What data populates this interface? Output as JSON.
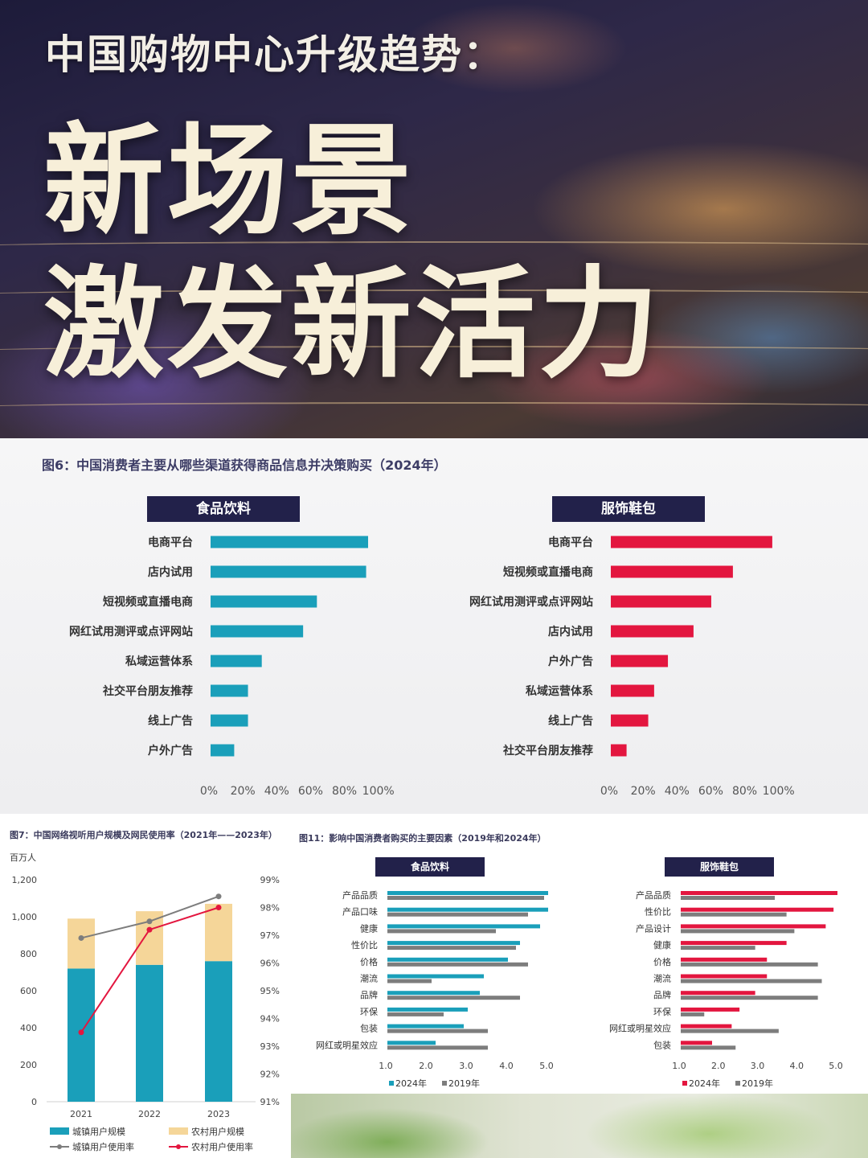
{
  "hero": {
    "subtitle": "中国购物中心升级趋势：",
    "title_line1": "新场景",
    "title_line2": "激发新活力"
  },
  "colors": {
    "teal": "#1a9fba",
    "red": "#e3163f",
    "navy": "#22214a",
    "gray": "#7d7d7d",
    "beige": "#f5d699"
  },
  "chart_data": [
    {
      "id": "fig6",
      "type": "bar",
      "orientation": "horizontal",
      "title": "图6：中国消费者主要从哪些渠道获得商品信息并决策购买（2024年）",
      "panels": [
        {
          "name": "食品饮料",
          "categories": [
            "电商平台",
            "店内试用",
            "短视频或直播电商",
            "网红试用测评或点评网站",
            "私域运营体系",
            "社交平台朋友推荐",
            "线上广告",
            "户外广告"
          ],
          "values": [
            80,
            79,
            54,
            47,
            26,
            19,
            19,
            12
          ]
        },
        {
          "name": "服饰鞋包",
          "categories": [
            "电商平台",
            "短视频或直播电商",
            "网红试用测评或点评网站",
            "店内试用",
            "户外广告",
            "私域运营体系",
            "线上广告",
            "社交平台朋友推荐"
          ],
          "values": [
            82,
            62,
            51,
            42,
            29,
            22,
            19,
            8
          ]
        }
      ],
      "xticks": [
        "0%",
        "20%",
        "40%",
        "60%",
        "80%",
        "100%"
      ],
      "xlim": [
        0,
        100
      ]
    },
    {
      "id": "fig7",
      "type": "bar",
      "title": "图7：中国网络视听用户规模及网民使用率（2021年——2023年）",
      "ylabel": "百万人",
      "categories": [
        "2021",
        "2022",
        "2023"
      ],
      "stacked_series": [
        {
          "name": "城镇用户规模",
          "values": [
            720,
            740,
            760
          ]
        },
        {
          "name": "农村用户规模",
          "values": [
            270,
            290,
            310
          ]
        }
      ],
      "line_series": [
        {
          "name": "城镇用户使用率",
          "values": [
            96.9,
            97.5,
            98.4
          ]
        },
        {
          "name": "农村用户使用率",
          "values": [
            93.5,
            97.2,
            98.0
          ]
        }
      ],
      "ylim_left": [
        0,
        1200
      ],
      "yticks_left": [
        "0",
        "200",
        "400",
        "600",
        "800",
        "1,000",
        "1,200"
      ],
      "ylim_right": [
        91,
        99
      ],
      "yticks_right": [
        "91%",
        "92%",
        "93%",
        "94%",
        "95%",
        "96%",
        "97%",
        "98%",
        "99%"
      ]
    },
    {
      "id": "fig11",
      "type": "bar",
      "orientation": "horizontal",
      "title": "图11：影响中国消费者购买的主要因素（2019年和2024年）",
      "panels": [
        {
          "name": "食品饮料",
          "categories": [
            "产品品质",
            "产品口味",
            "健康",
            "性价比",
            "价格",
            "潮流",
            "品牌",
            "环保",
            "包装",
            "网红或明星效应"
          ],
          "series": [
            {
              "name": "2024年",
              "values": [
                4.7,
                4.7,
                4.5,
                4.0,
                3.7,
                3.1,
                3.0,
                2.7,
                2.6,
                1.9
              ]
            },
            {
              "name": "2019年",
              "values": [
                4.6,
                4.2,
                3.4,
                3.9,
                4.2,
                1.8,
                4.0,
                2.1,
                3.2,
                3.2
              ]
            }
          ]
        },
        {
          "name": "服饰鞋包",
          "categories": [
            "产品品质",
            "性价比",
            "产品设计",
            "健康",
            "价格",
            "潮流",
            "品牌",
            "环保",
            "网红或明星效应",
            "包装"
          ],
          "series": [
            {
              "name": "2024年",
              "values": [
                4.7,
                4.6,
                4.4,
                3.4,
                2.9,
                2.9,
                2.6,
                2.2,
                2.0,
                1.5
              ]
            },
            {
              "name": "2019年",
              "values": [
                3.1,
                3.4,
                3.6,
                2.6,
                4.2,
                4.3,
                4.2,
                1.3,
                3.2,
                2.1
              ]
            }
          ]
        }
      ],
      "xticks": [
        "1.0",
        "2.0",
        "3.0",
        "4.0",
        "5.0"
      ],
      "xlim": [
        1.0,
        5.0
      ]
    }
  ]
}
